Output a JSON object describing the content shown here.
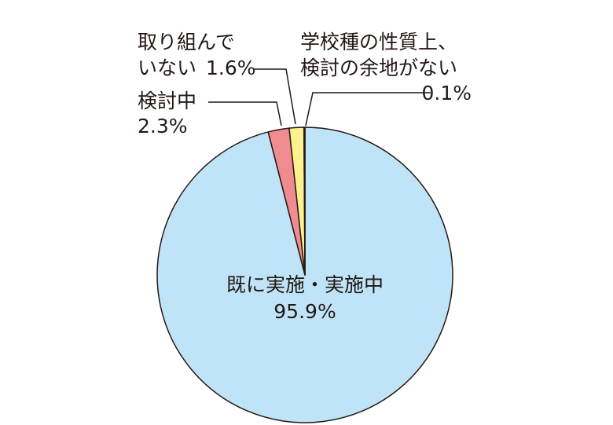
{
  "chart_data": {
    "type": "pie",
    "categories": [
      [
        "既に実施・実施中"
      ],
      [
        "検討中"
      ],
      [
        "取り組んで",
        "いない"
      ],
      [
        "学校種の性質上、",
        "検討の余地がない"
      ]
    ],
    "values": [
      95.9,
      2.3,
      1.6,
      0.1
    ],
    "value_labels": [
      "95.9%",
      "2.3%",
      "1.6%",
      "0.1%"
    ],
    "colors": [
      "#bfe4f7",
      "#f08c8f",
      "#fdf18f",
      "#fffbd6"
    ]
  }
}
